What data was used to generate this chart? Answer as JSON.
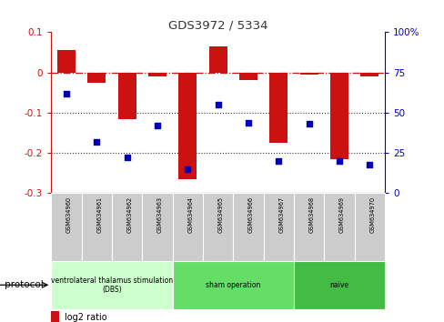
{
  "title": "GDS3972 / 5334",
  "samples": [
    "GSM634960",
    "GSM634961",
    "GSM634962",
    "GSM634963",
    "GSM634964",
    "GSM634965",
    "GSM634966",
    "GSM634967",
    "GSM634968",
    "GSM634969",
    "GSM634970"
  ],
  "log2_ratio": [
    0.055,
    -0.025,
    -0.115,
    -0.01,
    -0.265,
    0.065,
    -0.02,
    -0.175,
    -0.005,
    -0.215,
    -0.01
  ],
  "percentile_rank": [
    62,
    32,
    22,
    42,
    15,
    55,
    44,
    20,
    43,
    20,
    18
  ],
  "bar_color": "#cc1111",
  "dot_color": "#0000bb",
  "ylim_left": [
    -0.3,
    0.1
  ],
  "ylim_right": [
    0,
    100
  ],
  "yticks_left": [
    0.1,
    0.0,
    -0.1,
    -0.2,
    -0.3
  ],
  "yticks_right": [
    100,
    75,
    50,
    25,
    0
  ],
  "protocol_groups": [
    {
      "label": "ventrolateral thalamus stimulation\n(DBS)",
      "start": 0,
      "end": 3,
      "color": "#ccffcc"
    },
    {
      "label": "sham operation",
      "start": 4,
      "end": 7,
      "color": "#66dd66"
    },
    {
      "label": "naive",
      "start": 8,
      "end": 10,
      "color": "#44bb44"
    }
  ],
  "hline_color": "#cc1111",
  "dotted_line_color": "#333333",
  "legend_log2_color": "#cc1111",
  "legend_pct_color": "#0000bb",
  "background_color": "#ffffff",
  "gray_box_color": "#cccccc",
  "bar_width": 0.6
}
